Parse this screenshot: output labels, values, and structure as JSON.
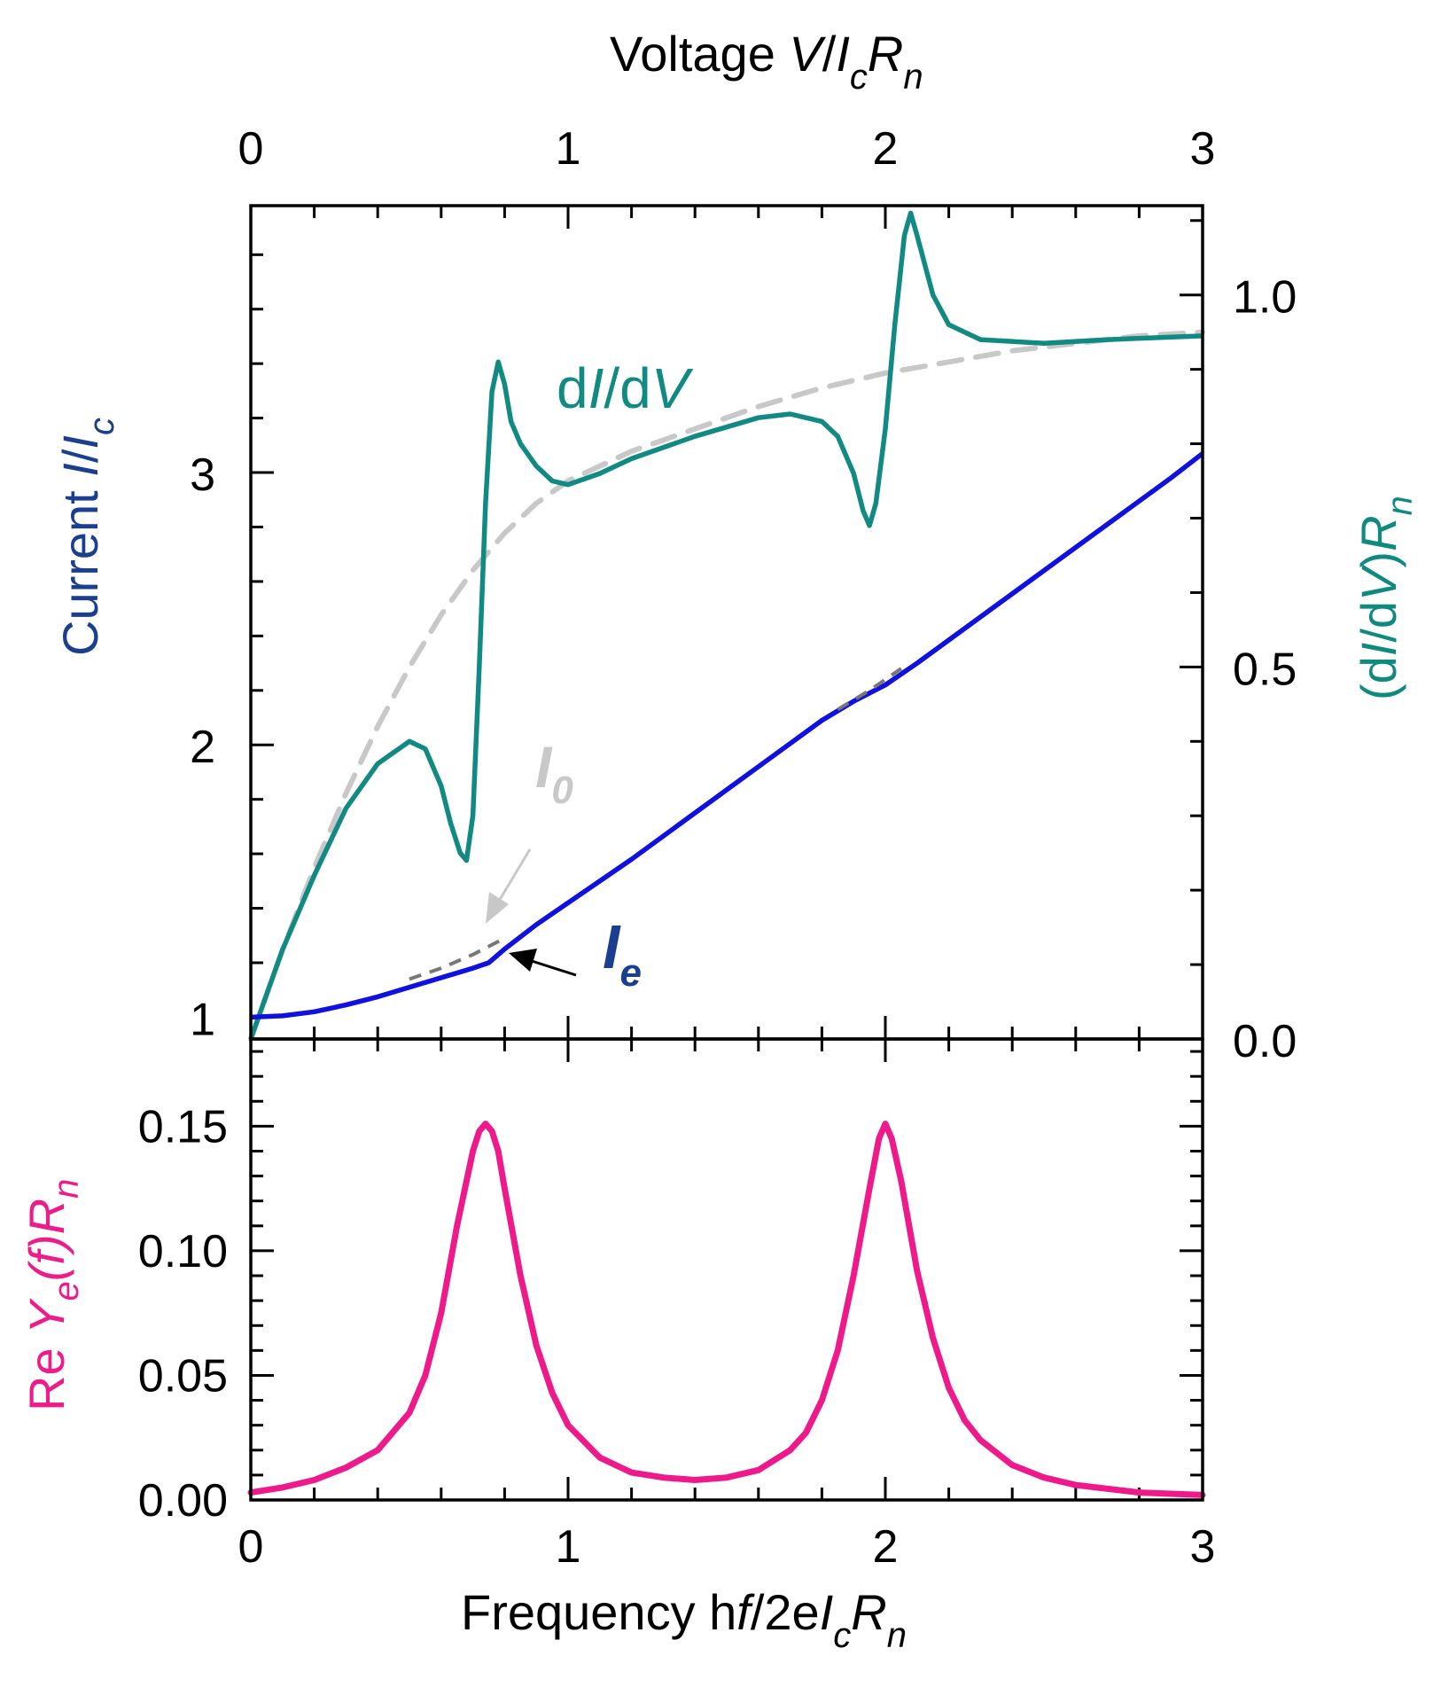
{
  "chart_data": [
    {
      "type": "line",
      "panel": "top",
      "title": "",
      "top_axis": {
        "title_prefix": "Voltage ",
        "title_V": "V",
        "title_slash": "/",
        "title_I": "I",
        "title_sub_c": "c",
        "title_R": "R",
        "title_sub_n": "n",
        "range": [
          0,
          3
        ],
        "tick_labels": [
          "0",
          "1",
          "2",
          "3"
        ]
      },
      "left_axis": {
        "title_prefix": "Current ",
        "title_I": "I",
        "title_slash": "/",
        "title_I2": "I",
        "title_sub_c": "c",
        "range": [
          0.92,
          3.98
        ],
        "tick_labels": [
          "1",
          "2",
          "3"
        ],
        "color": "#1a3f8f"
      },
      "right_axis": {
        "title_open": "(d",
        "title_I": "I",
        "title_slash": "/d",
        "title_V": "V",
        "title_close": ")",
        "title_R": "R",
        "title_sub_n": "n",
        "range": [
          0.0,
          1.12
        ],
        "tick_labels": [
          "0.0",
          "0.5",
          "1.0"
        ],
        "color": "#0f8a80"
      },
      "series": [
        {
          "name": "I_e",
          "label_main": "I",
          "label_sub": "e",
          "color": "#1010e0",
          "axis": "left",
          "x": [
            0,
            0.1,
            0.2,
            0.3,
            0.4,
            0.5,
            0.6,
            0.7,
            0.75,
            0.8,
            0.9,
            1.0,
            1.2,
            1.4,
            1.6,
            1.8,
            1.9,
            2.0,
            2.1,
            2.3,
            2.5,
            2.7,
            2.9,
            3.0
          ],
          "y": [
            1.0,
            1.005,
            1.02,
            1.045,
            1.075,
            1.11,
            1.145,
            1.18,
            1.2,
            1.25,
            1.34,
            1.42,
            1.58,
            1.75,
            1.92,
            2.09,
            2.16,
            2.22,
            2.3,
            2.47,
            2.64,
            2.81,
            2.98,
            3.07
          ]
        },
        {
          "name": "I_0",
          "label_main": "I",
          "label_sub": "0",
          "color": "#c8c8c8",
          "axis": "right",
          "dashed": true,
          "x": [
            0,
            0.1,
            0.2,
            0.3,
            0.4,
            0.5,
            0.6,
            0.7,
            0.8,
            0.9,
            1.0,
            1.2,
            1.4,
            1.6,
            1.8,
            2.0,
            2.2,
            2.4,
            2.6,
            2.8,
            3.0
          ],
          "y": [
            0.0,
            0.12,
            0.23,
            0.33,
            0.42,
            0.5,
            0.57,
            0.63,
            0.68,
            0.72,
            0.75,
            0.79,
            0.82,
            0.85,
            0.875,
            0.895,
            0.91,
            0.925,
            0.935,
            0.945,
            0.95
          ]
        },
        {
          "name": "dI/dV",
          "label_d1": "d",
          "label_I": "I",
          "label_slash": "/d",
          "label_V": "V",
          "color": "#108a82",
          "axis": "right",
          "x": [
            0,
            0.05,
            0.1,
            0.2,
            0.3,
            0.4,
            0.5,
            0.55,
            0.6,
            0.63,
            0.66,
            0.68,
            0.7,
            0.72,
            0.74,
            0.76,
            0.78,
            0.8,
            0.82,
            0.85,
            0.9,
            0.95,
            1.0,
            1.1,
            1.2,
            1.4,
            1.6,
            1.7,
            1.8,
            1.85,
            1.9,
            1.93,
            1.95,
            1.97,
            2.0,
            2.03,
            2.06,
            2.08,
            2.1,
            2.15,
            2.2,
            2.3,
            2.5,
            2.7,
            3.0
          ],
          "y": [
            0.0,
            0.06,
            0.12,
            0.22,
            0.31,
            0.37,
            0.4,
            0.39,
            0.34,
            0.29,
            0.25,
            0.24,
            0.3,
            0.5,
            0.72,
            0.87,
            0.91,
            0.88,
            0.83,
            0.8,
            0.77,
            0.75,
            0.745,
            0.76,
            0.78,
            0.81,
            0.835,
            0.84,
            0.83,
            0.81,
            0.76,
            0.71,
            0.69,
            0.72,
            0.82,
            0.96,
            1.08,
            1.11,
            1.08,
            1.0,
            0.96,
            0.94,
            0.935,
            0.94,
            0.945
          ]
        }
      ],
      "annotations": [
        {
          "target": "I_0",
          "arrow_color": "#c8c8c8"
        },
        {
          "target": "I_e",
          "arrow_color": "#000000"
        }
      ]
    },
    {
      "type": "line",
      "panel": "bottom",
      "xaxis": {
        "title_prefix": "Frequency h",
        "title_f": "f",
        "title_mid": "/2e",
        "title_I": "I",
        "title_sub_c": "c",
        "title_R": "R",
        "title_sub_n": "n",
        "range": [
          0,
          3
        ],
        "tick_labels": [
          "0",
          "1",
          "2",
          "3"
        ]
      },
      "yaxis": {
        "title_re": "Re ",
        "title_Y": "Y",
        "title_sub_e": "e",
        "title_f": "(f)",
        "title_R": "R",
        "title_sub_n": "n",
        "range": [
          0.0,
          0.185
        ],
        "tick_labels": [
          "0.00",
          "0.05",
          "0.10",
          "0.15"
        ],
        "color": "#ee1c8a"
      },
      "series": [
        {
          "name": "Re Ye(f)Rn",
          "color": "#ee1a8c",
          "x": [
            0,
            0.1,
            0.2,
            0.3,
            0.4,
            0.5,
            0.55,
            0.6,
            0.65,
            0.7,
            0.72,
            0.74,
            0.76,
            0.78,
            0.8,
            0.85,
            0.9,
            0.95,
            1.0,
            1.1,
            1.2,
            1.3,
            1.4,
            1.5,
            1.6,
            1.7,
            1.75,
            1.8,
            1.85,
            1.9,
            1.95,
            1.98,
            2.0,
            2.02,
            2.05,
            2.1,
            2.15,
            2.2,
            2.25,
            2.3,
            2.4,
            2.5,
            2.6,
            2.8,
            3.0
          ],
          "y": [
            0.003,
            0.005,
            0.008,
            0.013,
            0.02,
            0.035,
            0.05,
            0.075,
            0.11,
            0.14,
            0.148,
            0.151,
            0.148,
            0.14,
            0.125,
            0.09,
            0.062,
            0.043,
            0.03,
            0.017,
            0.011,
            0.009,
            0.008,
            0.009,
            0.012,
            0.02,
            0.027,
            0.04,
            0.06,
            0.09,
            0.125,
            0.145,
            0.151,
            0.145,
            0.128,
            0.092,
            0.065,
            0.045,
            0.032,
            0.024,
            0.014,
            0.009,
            0.006,
            0.003,
            0.002
          ]
        }
      ]
    }
  ]
}
